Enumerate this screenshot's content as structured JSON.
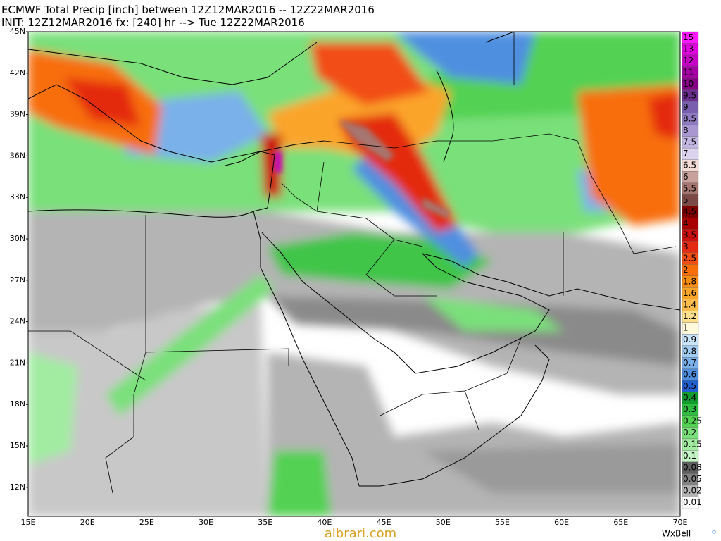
{
  "header": {
    "title": "ECMWF Total Precip [inch] between 12Z12MAR2016 -- 12Z22MAR2016",
    "subtitle": "INIT: 12Z12MAR2016 fx: [240] hr --> Tue 12Z22MAR2016"
  },
  "map": {
    "lat_labels": [
      "45N",
      "42N",
      "39N",
      "36N",
      "33N",
      "30N",
      "27N",
      "24N",
      "21N",
      "18N",
      "15N",
      "12N"
    ],
    "lon_labels": [
      "15E",
      "20E",
      "25E",
      "30E",
      "35E",
      "40E",
      "45E",
      "50E",
      "55E",
      "60E",
      "65E",
      "70E"
    ]
  },
  "legend": {
    "items": [
      {
        "label": "15",
        "color": "#ff18ff"
      },
      {
        "label": "13",
        "color": "#e000e0"
      },
      {
        "label": "12",
        "color": "#c400c4"
      },
      {
        "label": "11",
        "color": "#a400a4"
      },
      {
        "label": "10",
        "color": "#860086"
      },
      {
        "label": "9.5",
        "color": "#6b2f8f"
      },
      {
        "label": "9",
        "color": "#7a5fae"
      },
      {
        "label": "8.5",
        "color": "#8f7bc0"
      },
      {
        "label": "8",
        "color": "#a897d0"
      },
      {
        "label": "7.5",
        "color": "#c2b6e2"
      },
      {
        "label": "7",
        "color": "#dcd4ee"
      },
      {
        "label": "6.5",
        "color": "#f2dcd6"
      },
      {
        "label": "6",
        "color": "#c9a19c"
      },
      {
        "label": "5.5",
        "color": "#a67670"
      },
      {
        "label": "5",
        "color": "#7c4a46"
      },
      {
        "label": "4.5",
        "color": "#7d0000"
      },
      {
        "label": "4",
        "color": "#a80000"
      },
      {
        "label": "3.5",
        "color": "#cc1010"
      },
      {
        "label": "3",
        "color": "#e42a10"
      },
      {
        "label": "2.5",
        "color": "#f24e12"
      },
      {
        "label": "2",
        "color": "#f86e08"
      },
      {
        "label": "1.8",
        "color": "#fa8c10"
      },
      {
        "label": "1.6",
        "color": "#fba42a"
      },
      {
        "label": "1.4",
        "color": "#fcbc4c"
      },
      {
        "label": "1.2",
        "color": "#fde08e"
      },
      {
        "label": "1",
        "color": "#fffadc"
      },
      {
        "label": "0.9",
        "color": "#c9e3f8"
      },
      {
        "label": "0.8",
        "color": "#a2cbf2"
      },
      {
        "label": "0.7",
        "color": "#7ab1ea"
      },
      {
        "label": "0.6",
        "color": "#4f8fe0"
      },
      {
        "label": "0.5",
        "color": "#1f5fd0"
      },
      {
        "label": "0.4",
        "color": "#129b2e"
      },
      {
        "label": "0.3",
        "color": "#2fbd3f"
      },
      {
        "label": "0.25",
        "color": "#52d152"
      },
      {
        "label": "0.2",
        "color": "#7ae07a"
      },
      {
        "label": "0.15",
        "color": "#a2eca2"
      },
      {
        "label": "0.1",
        "color": "#c4f4c4"
      },
      {
        "label": "0.08",
        "color": "#5e5e5e"
      },
      {
        "label": "0.05",
        "color": "#828282"
      },
      {
        "label": "0.02",
        "color": "#b4b4b4"
      },
      {
        "label": "0.01",
        "color": "#ffffff"
      }
    ]
  },
  "footer": {
    "brand": "WxBell",
    "watermark": "albrari.com"
  }
}
